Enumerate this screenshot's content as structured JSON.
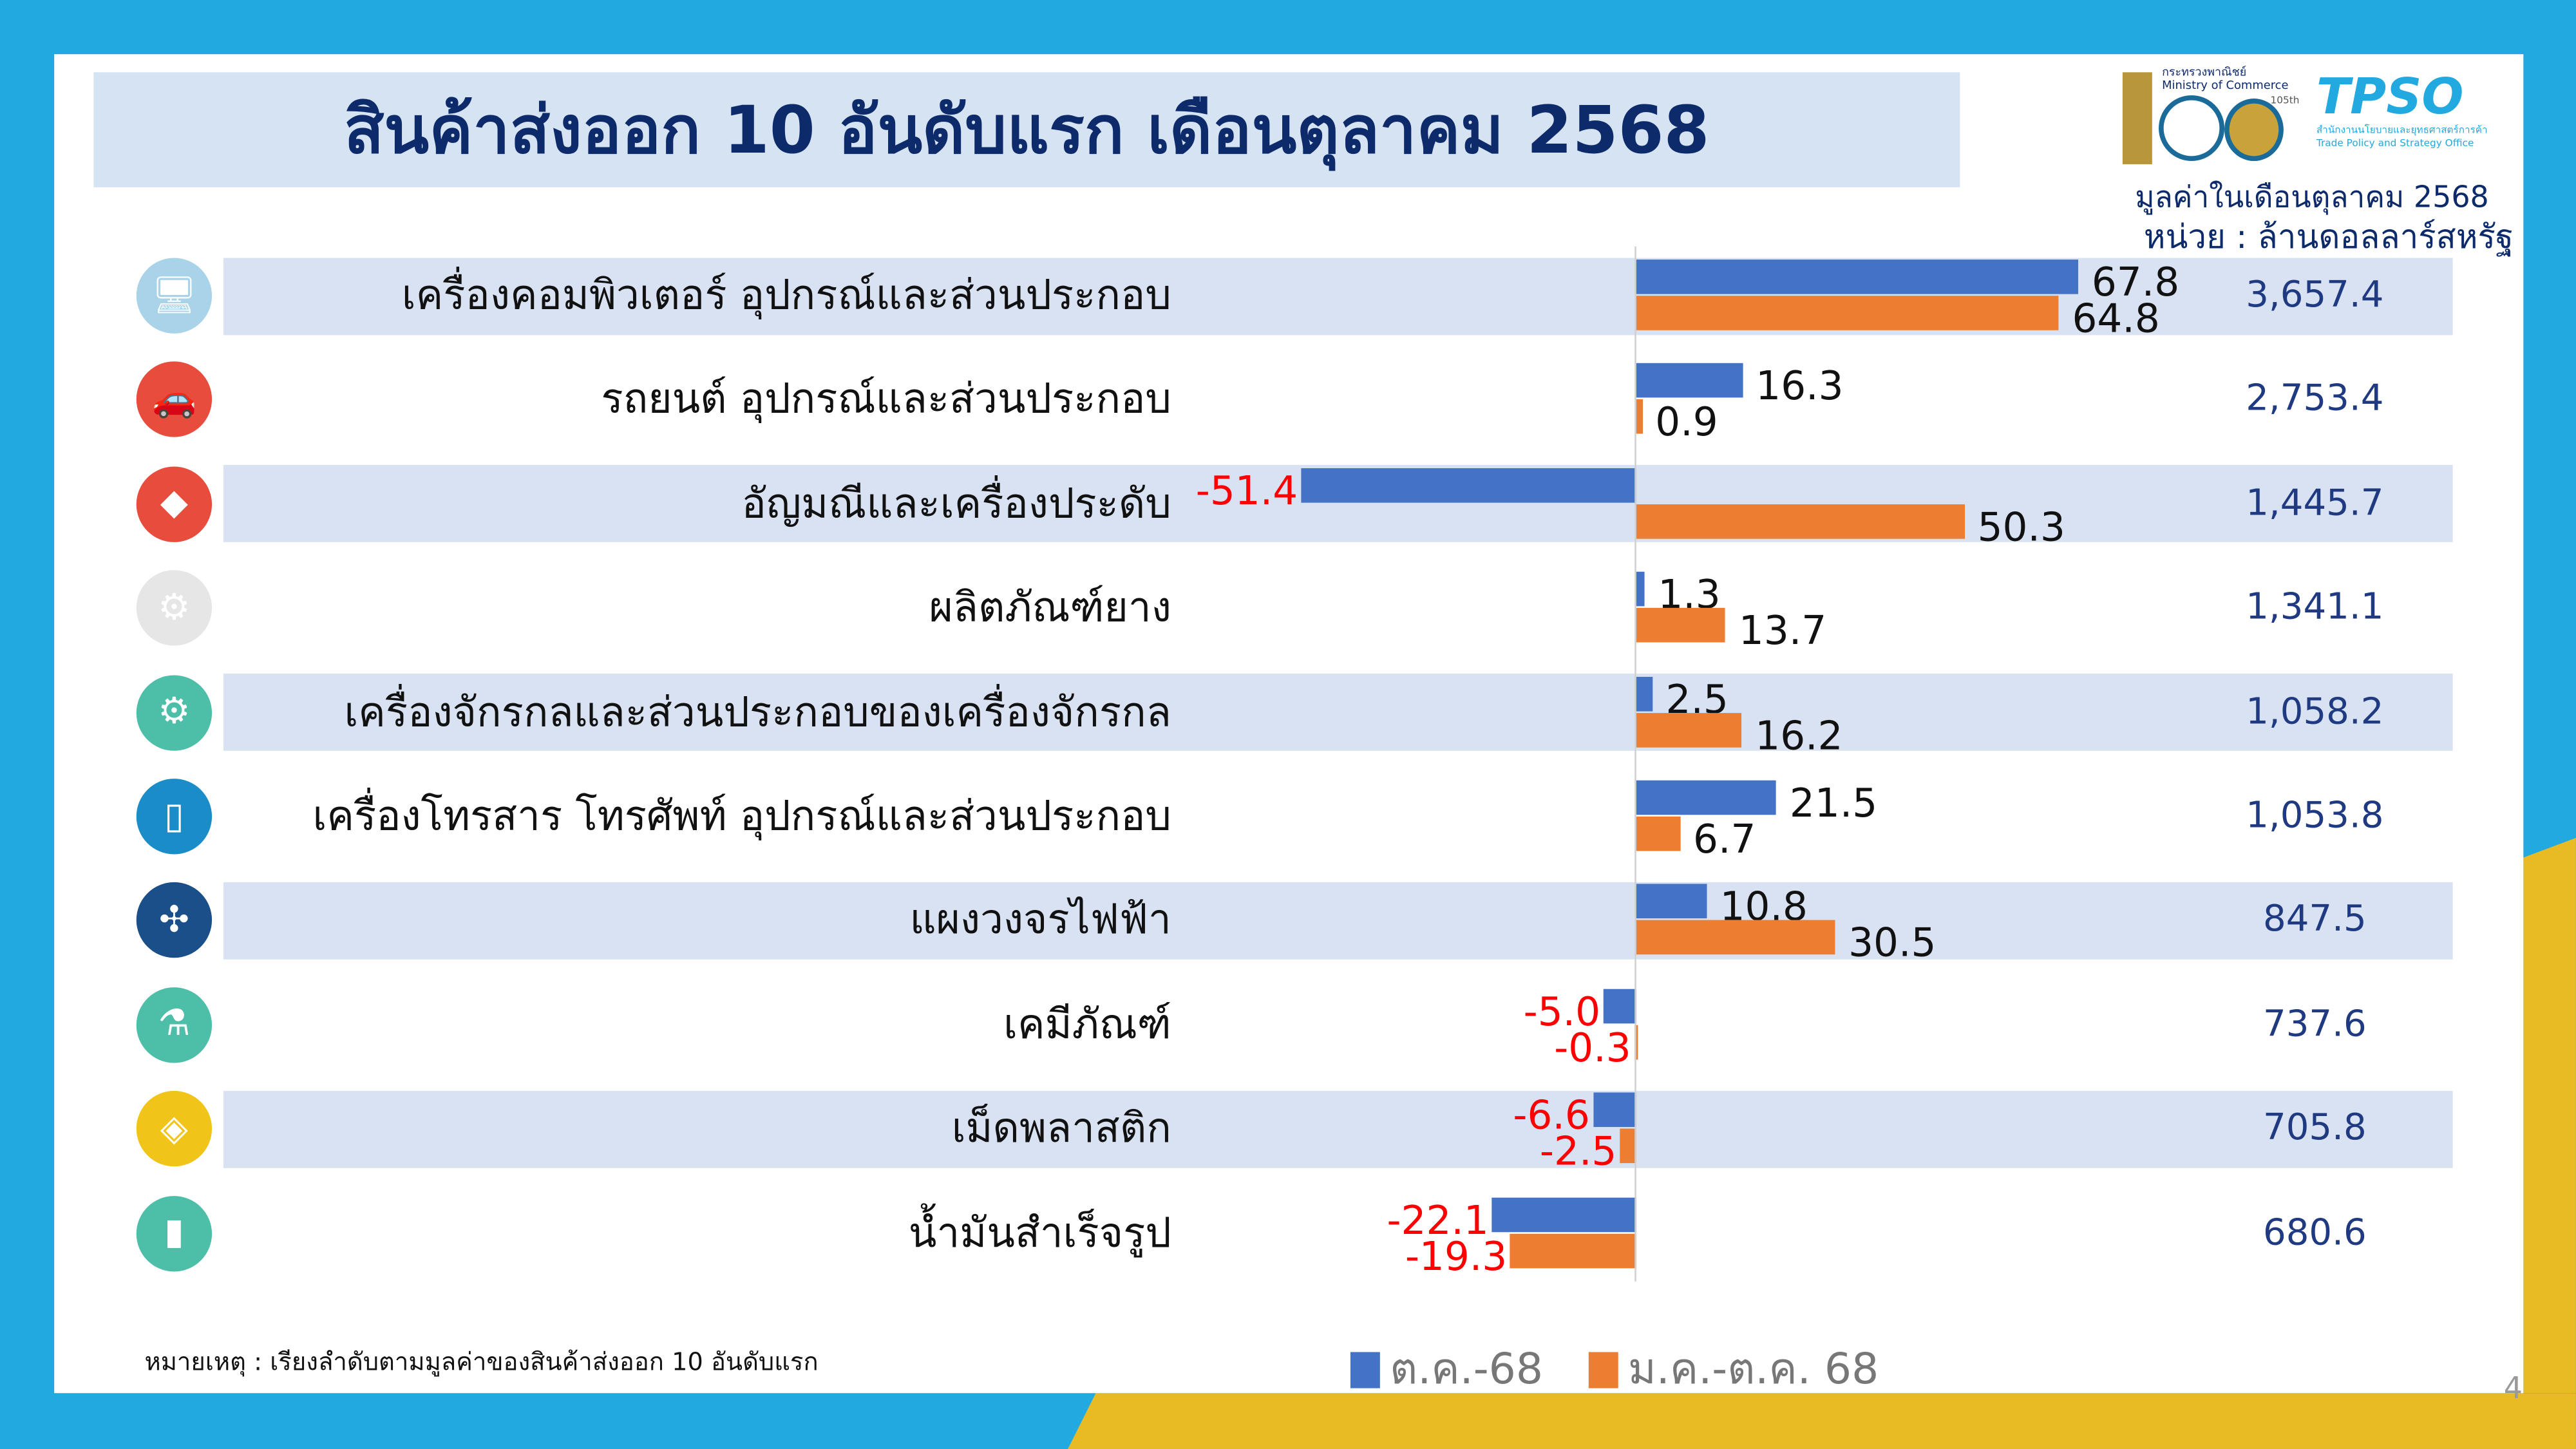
{
  "header": {
    "title": "สินค้าส่งออก 10 อันดับแรก เดือนตุลาคม 2568",
    "subtitle": "มูลค่าในเดือนตุลาคม 2568",
    "unit": "หน่วย : ล้านดอลลาร์สหรัฐ",
    "logo_ministry_th": "กระทรวงพาณิชย์",
    "logo_ministry_en": "Ministry of Commerce",
    "logo_ministry_number": "105th",
    "logo_tpso": "TPSO",
    "logo_tpso_th": "สำนักงานนโยบายและยุทธศาสตร์การค้า",
    "logo_tpso_en": "Trade Policy and Strategy Office"
  },
  "chart_data": {
    "type": "bar",
    "orientation": "horizontal",
    "categories": [
      "เครื่องคอมพิวเตอร์ อุปกรณ์และส่วนประกอบ",
      "รถยนต์ อุปกรณ์และส่วนประกอบ",
      "อัญมณีและเครื่องประดับ",
      "ผลิตภัณฑ์ยาง",
      "เครื่องจักรกลและส่วนประกอบของเครื่องจักรกล",
      "เครื่องโทรสาร โทรศัพท์ อุปกรณ์และส่วนประกอบ",
      "แผงวงจรไฟฟ้า",
      "เคมีภัณฑ์",
      "เม็ดพลาสติก",
      "น้ำมันสำเร็จรูป"
    ],
    "series": [
      {
        "name": "ต.ค.-68",
        "color": "#4472c4",
        "values": [
          67.8,
          16.3,
          -51.4,
          1.3,
          2.5,
          21.5,
          10.8,
          -5.0,
          -6.6,
          -22.1
        ]
      },
      {
        "name": "ม.ค.-ต.ค. 68",
        "color": "#ed7d31",
        "values": [
          64.8,
          0.9,
          50.3,
          13.7,
          16.2,
          6.7,
          30.5,
          -0.3,
          -2.5,
          -19.3
        ]
      }
    ],
    "totals": [
      "3,657.4",
      "2,753.4",
      "1,445.7",
      "1,341.1",
      "1,058.2",
      "1,053.8",
      "847.5",
      "737.6",
      "705.8",
      "680.6"
    ],
    "icons": [
      "computer-icon",
      "car-icon",
      "diamond-icon",
      "tire-worker-icon",
      "gear-icon",
      "smartphone-icon",
      "circuit-icon",
      "chemical-flask-icon",
      "plastic-bag-icon",
      "oil-barrel-icon"
    ],
    "icon_colors": [
      "#a9d3e8",
      "#e84c3d",
      "#e84c3d",
      "#e6e6e6",
      "#4dbfa8",
      "#1a8cc8",
      "#1b4f8a",
      "#4dbfa8",
      "#f0c419",
      "#4dbfa8"
    ],
    "negative_label_color": "#ff0000",
    "legend_placement": "bottom"
  },
  "footer": {
    "note": "หมายเหตุ : เรียงลำดับตามมูลค่าของสินค้าส่งออก 10 อันดับแรก",
    "page": "4"
  }
}
